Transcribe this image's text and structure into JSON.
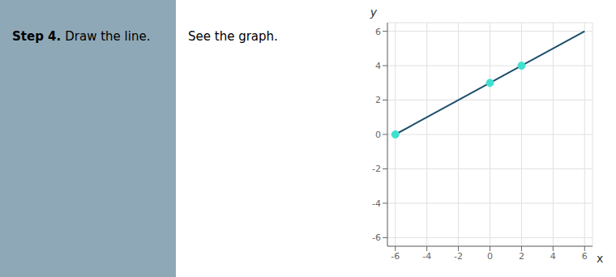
{
  "chart_data": {
    "type": "line",
    "annotations": [
      "Step 4.",
      "Draw the line.",
      "See the graph."
    ],
    "x_label": "x",
    "y_label": "y",
    "xlim": [
      -6.5,
      6.5
    ],
    "ylim": [
      -6.5,
      6.5
    ],
    "xticks": [
      -6,
      -4,
      -2,
      0,
      2,
      4,
      6
    ],
    "yticks": [
      -6,
      -4,
      -2,
      0,
      2,
      4,
      6
    ],
    "grid": true,
    "series": [
      {
        "type": "line",
        "color": "#1c4f6b",
        "x": [
          -6.0,
          6.0
        ],
        "values": [
          0,
          6
        ]
      },
      {
        "type": "scatter",
        "color": "#40e0d0",
        "x": [
          -6,
          0,
          2
        ],
        "values": [
          0,
          3,
          4
        ]
      }
    ]
  }
}
